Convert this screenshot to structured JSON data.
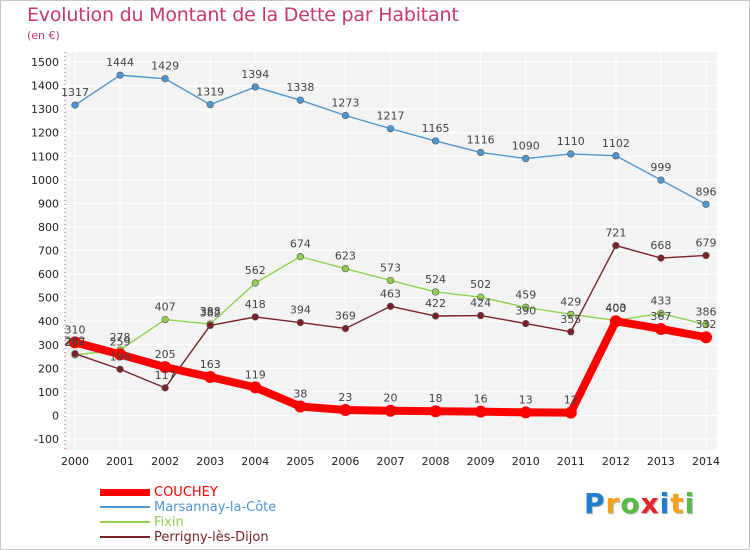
{
  "title": "Evolution du Montant de la Dette par Habitant",
  "unit": "(en €)",
  "chart_data": {
    "type": "line",
    "title": "Evolution du Montant de la Dette par Habitant",
    "ylabel": "(en €)",
    "xlabel": "",
    "x": [
      2000,
      2001,
      2002,
      2003,
      2004,
      2005,
      2006,
      2007,
      2008,
      2009,
      2010,
      2011,
      2012,
      2013,
      2014
    ],
    "ylim": [
      -100,
      1500
    ],
    "yticks": [
      -100,
      0,
      100,
      200,
      300,
      400,
      500,
      600,
      700,
      800,
      900,
      1000,
      1100,
      1200,
      1300,
      1400,
      1500
    ],
    "grid": true,
    "legend_position": "bottom-left",
    "series": [
      {
        "name": "COUCHEY",
        "color": "#ff0000",
        "values": [
          310,
          259,
          205,
          163,
          119,
          38,
          23,
          20,
          18,
          16,
          13,
          12,
          400,
          367,
          332
        ]
      },
      {
        "name": "Marsannay-la-Côte",
        "color": "#4f97d3",
        "values": [
          1317,
          1444,
          1429,
          1319,
          1394,
          1338,
          1273,
          1217,
          1165,
          1116,
          1090,
          1110,
          1102,
          999,
          896
        ]
      },
      {
        "name": "Fixin",
        "color": "#8fd14f",
        "values": [
          257,
          278,
          407,
          388,
          562,
          674,
          623,
          573,
          524,
          502,
          459,
          429,
          403,
          433,
          386
        ]
      },
      {
        "name": "Perrigny-lès-Dijon",
        "color": "#7a2228",
        "values": [
          262,
          196,
          117,
          382,
          418,
          394,
          369,
          463,
          422,
          424,
          390,
          355,
          721,
          668,
          679
        ]
      }
    ]
  },
  "logo": {
    "letters": [
      {
        "char": "P",
        "color": "#1e7fd0"
      },
      {
        "char": "r",
        "color": "#f7a21b"
      },
      {
        "char": "o",
        "color": "#59b947"
      },
      {
        "char": "x",
        "color": "#e8232a"
      },
      {
        "char": "i",
        "color": "#1e7fd0"
      },
      {
        "char": "t",
        "color": "#f7a21b"
      },
      {
        "char": "i",
        "color": "#59b947"
      }
    ]
  }
}
